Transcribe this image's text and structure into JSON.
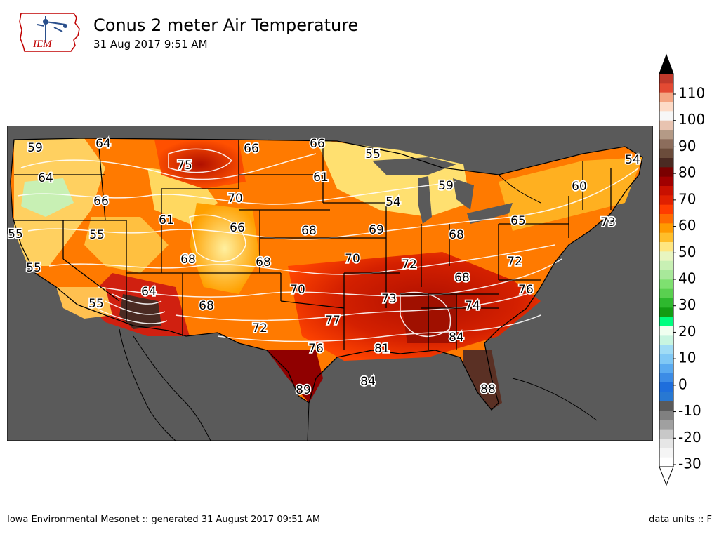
{
  "header": {
    "title": "Conus 2 meter Air Temperature",
    "subtitle": "31 Aug 2017 9:51 AM",
    "logo_text": "IEM"
  },
  "footer": {
    "left": "Iowa Environmental Mesonet :: generated 31 August 2017 09:51 AM",
    "right": "data units :: F"
  },
  "map": {
    "background_color": "#5a5a5a",
    "contour_color": "#ffffff",
    "station_labels": [
      {
        "text": "59"
      },
      {
        "text": "64"
      },
      {
        "text": "66"
      },
      {
        "text": "66"
      },
      {
        "text": "55"
      },
      {
        "text": "54"
      },
      {
        "text": "64"
      },
      {
        "text": "75"
      },
      {
        "text": "61"
      },
      {
        "text": "59"
      },
      {
        "text": "60"
      },
      {
        "text": "66"
      },
      {
        "text": "70"
      },
      {
        "text": "54"
      },
      {
        "text": "55"
      },
      {
        "text": "55"
      },
      {
        "text": "61"
      },
      {
        "text": "66"
      },
      {
        "text": "68"
      },
      {
        "text": "69"
      },
      {
        "text": "68"
      },
      {
        "text": "65"
      },
      {
        "text": "73"
      },
      {
        "text": "55"
      },
      {
        "text": "68"
      },
      {
        "text": "68"
      },
      {
        "text": "70"
      },
      {
        "text": "72"
      },
      {
        "text": "72"
      },
      {
        "text": "64"
      },
      {
        "text": "70"
      },
      {
        "text": "68"
      },
      {
        "text": "76"
      },
      {
        "text": "55"
      },
      {
        "text": "68"
      },
      {
        "text": "73"
      },
      {
        "text": "74"
      },
      {
        "text": "77"
      },
      {
        "text": "72"
      },
      {
        "text": "84"
      },
      {
        "text": "76"
      },
      {
        "text": "81"
      },
      {
        "text": "84"
      },
      {
        "text": "88"
      },
      {
        "text": "89"
      }
    ]
  },
  "colorbar": {
    "ticks": [
      "110",
      "100",
      "90",
      "80",
      "70",
      "60",
      "50",
      "40",
      "30",
      "20",
      "10",
      "0",
      "-10",
      "-20",
      "-30"
    ],
    "colors": [
      "#c0392b",
      "#e34a33",
      "#f4a582",
      "#fddbc7",
      "#f7f7f7",
      "#e8c3b0",
      "#b49a86",
      "#8c6d5c",
      "#6b4c3b",
      "#4a2a22",
      "#7a0000",
      "#a00000",
      "#c81000",
      "#e02000",
      "#ff3c00",
      "#ff6a00",
      "#ff9a00",
      "#ffbe2a",
      "#ffe680",
      "#e8f5c0",
      "#c8f0b4",
      "#a8e89a",
      "#7ee070",
      "#5ad050",
      "#2eb82e",
      "#139c13",
      "#00ff80",
      "#f0fff0",
      "#c8f5e0",
      "#a0dcf5",
      "#80c8f5",
      "#5aaaf0",
      "#3c8ce6",
      "#1e6edc",
      "#2878d2",
      "#5a5a5a",
      "#808080",
      "#a0a0a0",
      "#c8c8c8",
      "#e6e6e6",
      "#f5f5f5",
      "#ffffff"
    ]
  }
}
